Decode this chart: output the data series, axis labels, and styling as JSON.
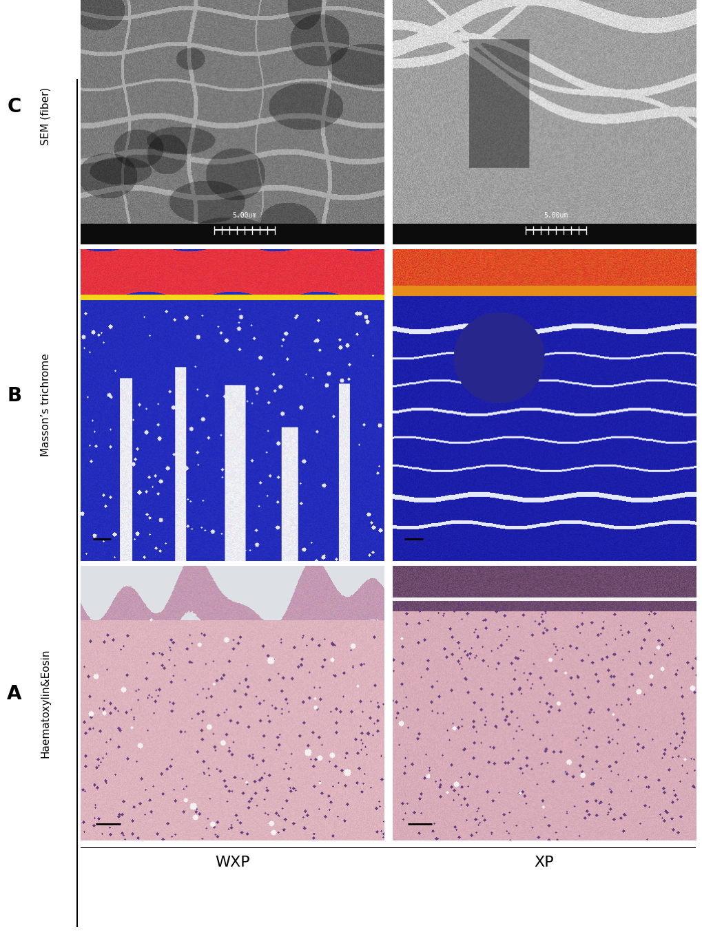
{
  "title_WXP": "WXP",
  "title_XP": "XP",
  "label_A": "A",
  "label_B": "B",
  "label_C": "C",
  "row_label_A": "Haematoxylin&Eosin",
  "row_label_B": "Masson’s trichrome",
  "row_label_C": "SEM (fiber)",
  "scale_bar_C": "5.00um",
  "bg_color": "#ffffff",
  "figure_width": 10.2,
  "figure_height": 13.54,
  "dpi": 100,
  "header_line_color": "#000000",
  "left_line_color": "#000000",
  "label_fontsize": 20,
  "col_header_fontsize": 16,
  "row_label_fontsize": 11
}
